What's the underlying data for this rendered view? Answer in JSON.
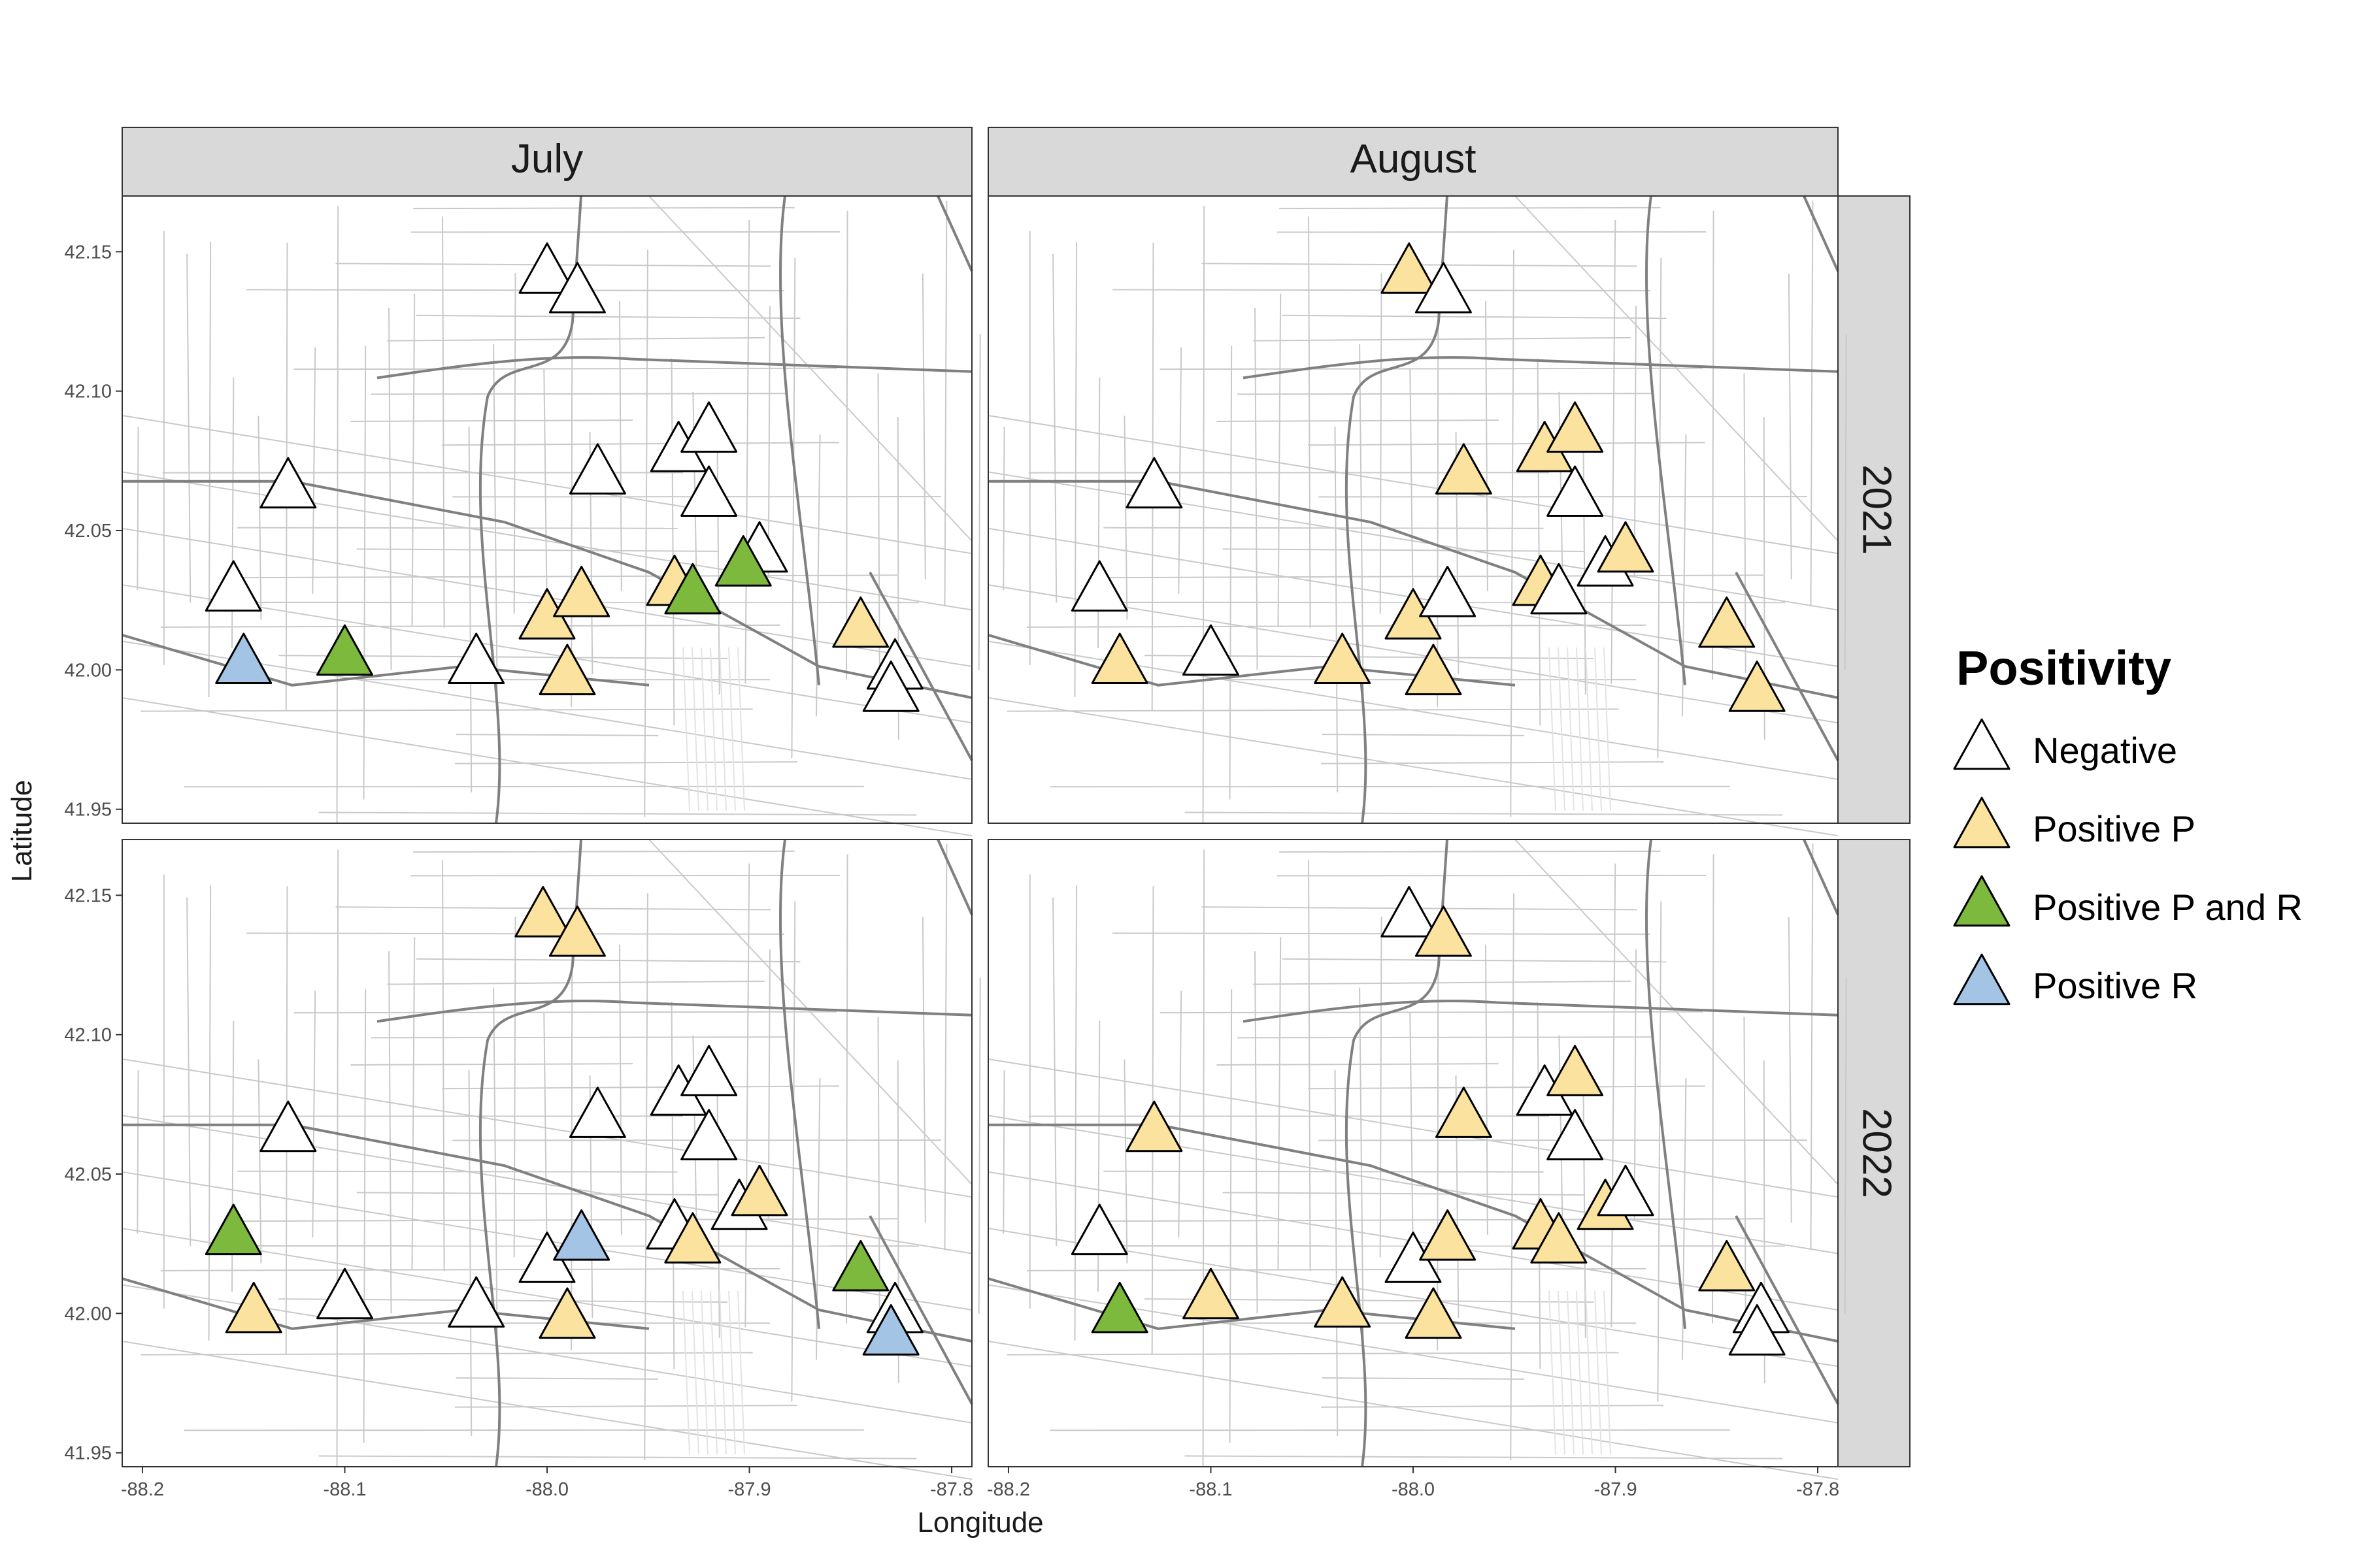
{
  "chart_data": {
    "type": "scatter",
    "title": "",
    "xlabel": "Longitude",
    "ylabel": "Latitude",
    "xlim": [
      -88.21,
      -87.79
    ],
    "ylim": [
      41.945,
      42.17
    ],
    "x_ticks": [
      -88.2,
      -88.1,
      -88.0,
      -87.9,
      -87.8
    ],
    "x_tick_labels": [
      "-88.2",
      "-88.1",
      "-88.0",
      "-87.9",
      "-87.8"
    ],
    "y_ticks": [
      41.95,
      42.0,
      42.05,
      42.1,
      42.15
    ],
    "y_tick_labels": [
      "41.95",
      "42.00",
      "42.05",
      "42.10",
      "42.15"
    ],
    "facet_columns": [
      "July",
      "August"
    ],
    "facet_rows": [
      "2021",
      "2022"
    ],
    "legend": {
      "title": "Positivity",
      "position": "right",
      "entries": [
        {
          "key": "neg",
          "label": "Negative",
          "color": "#ffffff"
        },
        {
          "key": "p",
          "label": "Positive P",
          "color": "#fbe29f"
        },
        {
          "key": "pr",
          "label": "Positive P and R",
          "color": "#7db93c"
        },
        {
          "key": "r",
          "label": "Positive R",
          "color": "#a4c4e6"
        }
      ]
    },
    "panels": [
      {
        "column": "July",
        "row": "2021",
        "points": [
          {
            "lon": -88.0,
            "lat": 42.142,
            "status": "neg"
          },
          {
            "lon": -87.985,
            "lat": 42.135,
            "status": "neg"
          },
          {
            "lon": -88.128,
            "lat": 42.065,
            "status": "neg"
          },
          {
            "lon": -87.975,
            "lat": 42.07,
            "status": "neg"
          },
          {
            "lon": -87.935,
            "lat": 42.078,
            "status": "neg"
          },
          {
            "lon": -87.92,
            "lat": 42.085,
            "status": "neg"
          },
          {
            "lon": -87.92,
            "lat": 42.062,
            "status": "neg"
          },
          {
            "lon": -88.155,
            "lat": 42.028,
            "status": "neg"
          },
          {
            "lon": -88.035,
            "lat": 42.002,
            "status": "neg"
          },
          {
            "lon": -87.828,
            "lat": 42.0,
            "status": "neg"
          },
          {
            "lon": -87.83,
            "lat": 41.992,
            "status": "neg"
          },
          {
            "lon": -87.895,
            "lat": 42.042,
            "status": "neg"
          },
          {
            "lon": -88.0,
            "lat": 42.018,
            "status": "p"
          },
          {
            "lon": -87.983,
            "lat": 42.026,
            "status": "p"
          },
          {
            "lon": -87.99,
            "lat": 41.998,
            "status": "p"
          },
          {
            "lon": -87.937,
            "lat": 42.03,
            "status": "p"
          },
          {
            "lon": -87.845,
            "lat": 42.015,
            "status": "p"
          },
          {
            "lon": -88.1,
            "lat": 42.005,
            "status": "pr"
          },
          {
            "lon": -87.928,
            "lat": 42.027,
            "status": "pr"
          },
          {
            "lon": -87.903,
            "lat": 42.037,
            "status": "pr"
          },
          {
            "lon": -88.15,
            "lat": 42.002,
            "status": "r"
          }
        ]
      },
      {
        "column": "August",
        "row": "2021",
        "points": [
          {
            "lon": -88.002,
            "lat": 42.142,
            "status": "p"
          },
          {
            "lon": -87.985,
            "lat": 42.135,
            "status": "neg"
          },
          {
            "lon": -88.128,
            "lat": 42.065,
            "status": "neg"
          },
          {
            "lon": -87.975,
            "lat": 42.07,
            "status": "p"
          },
          {
            "lon": -87.935,
            "lat": 42.078,
            "status": "p"
          },
          {
            "lon": -87.92,
            "lat": 42.085,
            "status": "p"
          },
          {
            "lon": -87.92,
            "lat": 42.062,
            "status": "neg"
          },
          {
            "lon": -87.905,
            "lat": 42.037,
            "status": "neg"
          },
          {
            "lon": -87.895,
            "lat": 42.042,
            "status": "p"
          },
          {
            "lon": -88.155,
            "lat": 42.028,
            "status": "neg"
          },
          {
            "lon": -88.1,
            "lat": 42.005,
            "status": "neg"
          },
          {
            "lon": -88.145,
            "lat": 42.002,
            "status": "p"
          },
          {
            "lon": -88.035,
            "lat": 42.002,
            "status": "p"
          },
          {
            "lon": -88.0,
            "lat": 42.018,
            "status": "p"
          },
          {
            "lon": -87.983,
            "lat": 42.026,
            "status": "neg"
          },
          {
            "lon": -87.99,
            "lat": 41.998,
            "status": "p"
          },
          {
            "lon": -87.937,
            "lat": 42.03,
            "status": "p"
          },
          {
            "lon": -87.928,
            "lat": 42.027,
            "status": "neg"
          },
          {
            "lon": -87.845,
            "lat": 42.015,
            "status": "p"
          },
          {
            "lon": -87.83,
            "lat": 41.992,
            "status": "p"
          }
        ]
      },
      {
        "column": "July",
        "row": "2022",
        "points": [
          {
            "lon": -88.002,
            "lat": 42.142,
            "status": "p"
          },
          {
            "lon": -87.985,
            "lat": 42.135,
            "status": "p"
          },
          {
            "lon": -88.128,
            "lat": 42.065,
            "status": "neg"
          },
          {
            "lon": -87.975,
            "lat": 42.07,
            "status": "neg"
          },
          {
            "lon": -87.935,
            "lat": 42.078,
            "status": "neg"
          },
          {
            "lon": -87.92,
            "lat": 42.085,
            "status": "neg"
          },
          {
            "lon": -87.92,
            "lat": 42.062,
            "status": "neg"
          },
          {
            "lon": -87.905,
            "lat": 42.037,
            "status": "neg"
          },
          {
            "lon": -87.895,
            "lat": 42.042,
            "status": "p"
          },
          {
            "lon": -88.155,
            "lat": 42.028,
            "status": "pr"
          },
          {
            "lon": -88.145,
            "lat": 42.0,
            "status": "p"
          },
          {
            "lon": -88.1,
            "lat": 42.005,
            "status": "neg"
          },
          {
            "lon": -88.035,
            "lat": 42.002,
            "status": "neg"
          },
          {
            "lon": -88.0,
            "lat": 42.018,
            "status": "neg"
          },
          {
            "lon": -87.983,
            "lat": 42.026,
            "status": "r"
          },
          {
            "lon": -87.99,
            "lat": 41.998,
            "status": "p"
          },
          {
            "lon": -87.937,
            "lat": 42.03,
            "status": "neg"
          },
          {
            "lon": -87.928,
            "lat": 42.025,
            "status": "p"
          },
          {
            "lon": -87.845,
            "lat": 42.015,
            "status": "pr"
          },
          {
            "lon": -87.828,
            "lat": 42.0,
            "status": "neg"
          },
          {
            "lon": -87.83,
            "lat": 41.992,
            "status": "r"
          }
        ]
      },
      {
        "column": "August",
        "row": "2022",
        "points": [
          {
            "lon": -88.002,
            "lat": 42.142,
            "status": "neg"
          },
          {
            "lon": -87.985,
            "lat": 42.135,
            "status": "p"
          },
          {
            "lon": -88.128,
            "lat": 42.065,
            "status": "p"
          },
          {
            "lon": -87.975,
            "lat": 42.07,
            "status": "p"
          },
          {
            "lon": -87.935,
            "lat": 42.078,
            "status": "neg"
          },
          {
            "lon": -87.92,
            "lat": 42.085,
            "status": "p"
          },
          {
            "lon": -87.92,
            "lat": 42.062,
            "status": "neg"
          },
          {
            "lon": -87.905,
            "lat": 42.037,
            "status": "p"
          },
          {
            "lon": -87.895,
            "lat": 42.042,
            "status": "neg"
          },
          {
            "lon": -88.155,
            "lat": 42.028,
            "status": "neg"
          },
          {
            "lon": -88.145,
            "lat": 42.0,
            "status": "pr"
          },
          {
            "lon": -88.1,
            "lat": 42.005,
            "status": "p"
          },
          {
            "lon": -88.035,
            "lat": 42.002,
            "status": "p"
          },
          {
            "lon": -88.0,
            "lat": 42.018,
            "status": "neg"
          },
          {
            "lon": -87.983,
            "lat": 42.026,
            "status": "p"
          },
          {
            "lon": -87.99,
            "lat": 41.998,
            "status": "p"
          },
          {
            "lon": -87.937,
            "lat": 42.03,
            "status": "p"
          },
          {
            "lon": -87.928,
            "lat": 42.025,
            "status": "p"
          },
          {
            "lon": -87.845,
            "lat": 42.015,
            "status": "p"
          },
          {
            "lon": -87.828,
            "lat": 42.0,
            "status": "neg"
          },
          {
            "lon": -87.83,
            "lat": 41.992,
            "status": "neg"
          }
        ]
      }
    ]
  }
}
